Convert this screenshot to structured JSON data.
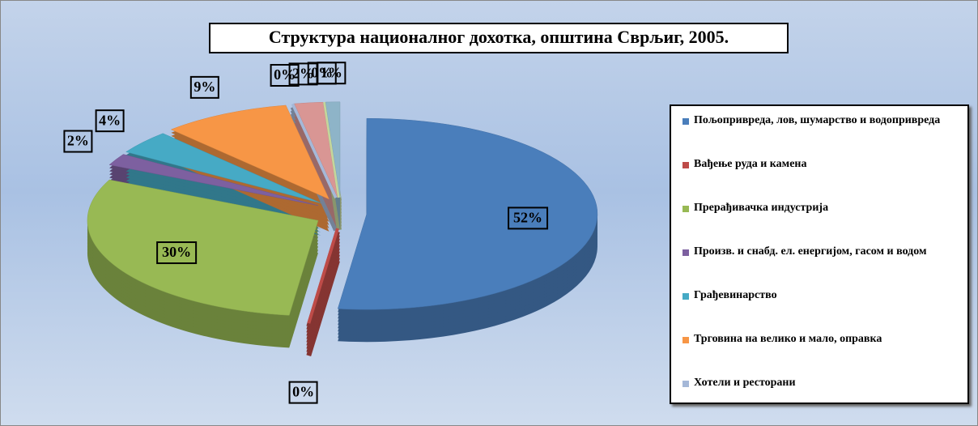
{
  "chart_data": {
    "type": "pie",
    "title": "Структура националног дохотка, општина Сврљиг, 2005.",
    "categories": [
      "Пољопривреда, лов, шумарство и водопривреда",
      "Вађење руда и камена",
      "Прерађивачка индустрија",
      "Произв. и снабд. ел. енергијом, гасом и водом",
      "Грађевинарство",
      "Трговина на велико и мало, оправка",
      "Хотели и ресторани",
      null,
      null,
      null
    ],
    "values": [
      52,
      0,
      30,
      2,
      4,
      9,
      0,
      2,
      0,
      1
    ],
    "value_labels": [
      "52%",
      "0%",
      "30%",
      "2%",
      "4%",
      "9%",
      "0%",
      "2%",
      "0%",
      "1%"
    ],
    "colors": [
      "#4a7ebb",
      "#be4b48",
      "#98b954",
      "#7d60a0",
      "#46aac5",
      "#f79646",
      "#a5b8d8",
      "#d99694",
      "#c4d69b",
      "#8eb4c8"
    ]
  }
}
